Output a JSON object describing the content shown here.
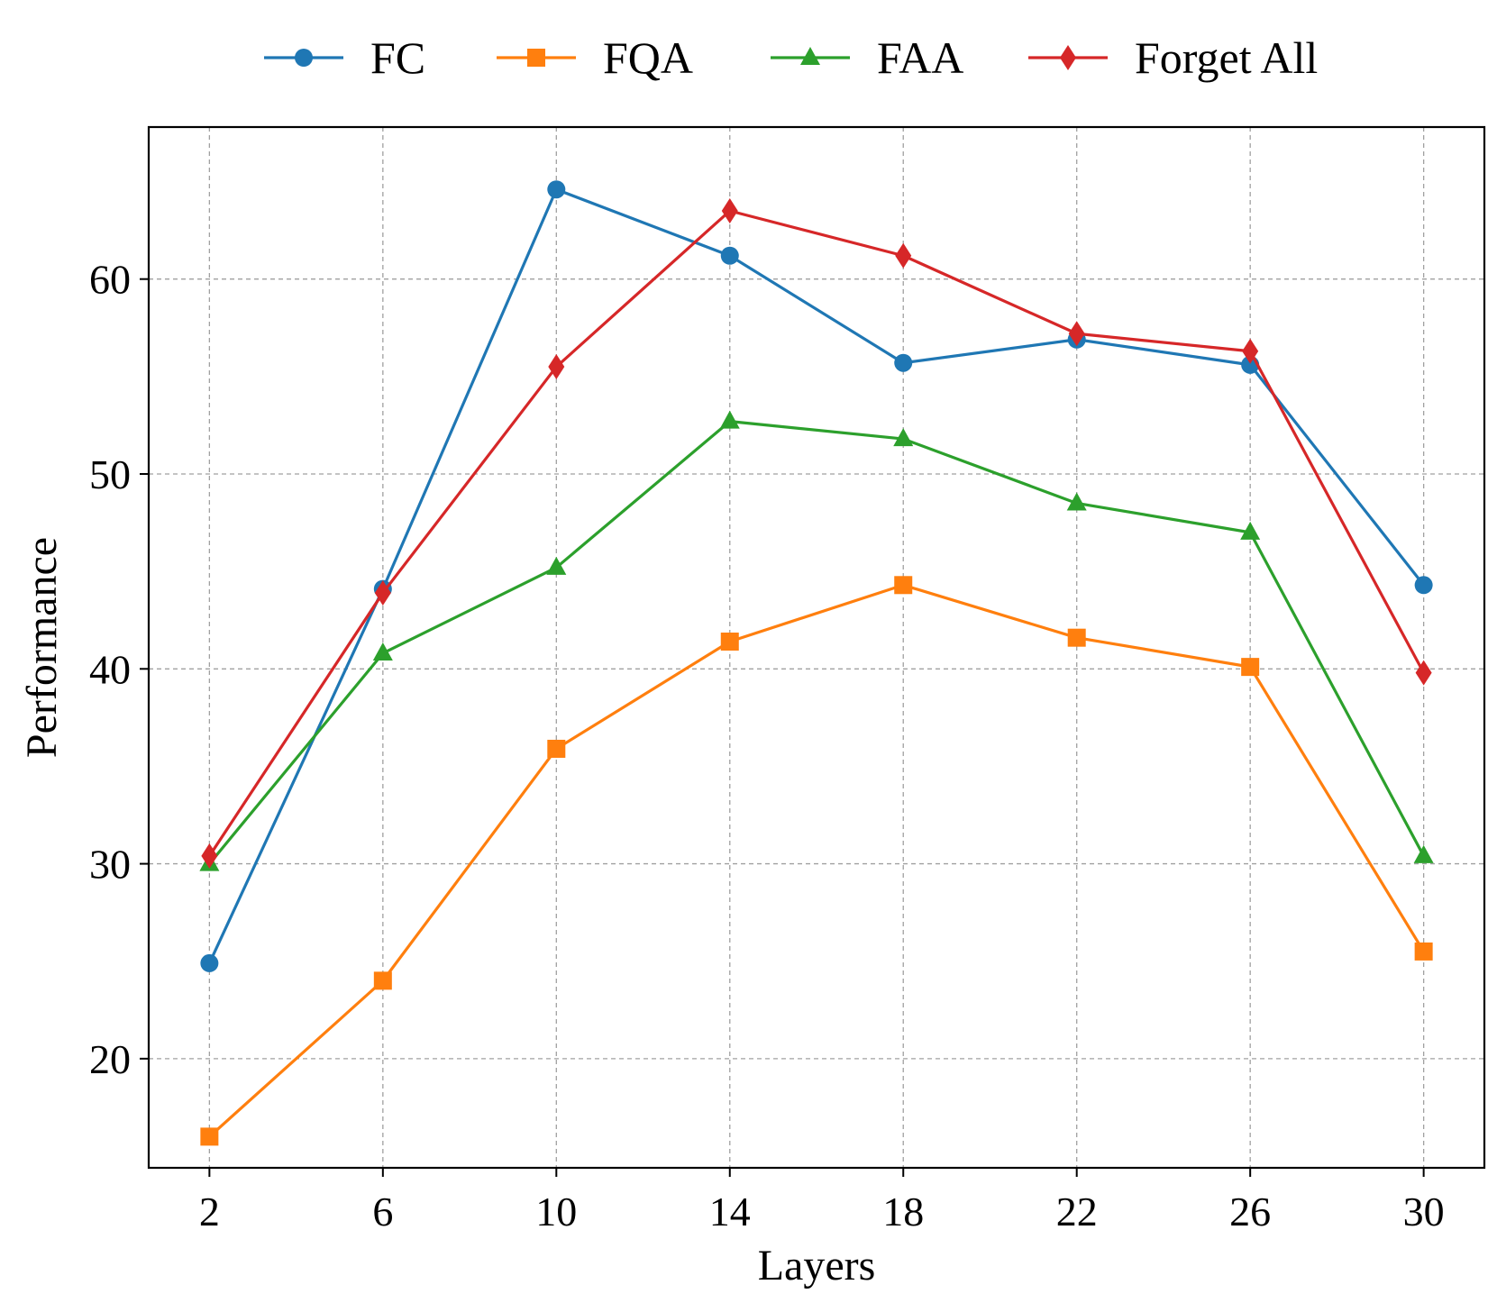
{
  "chart_data": {
    "type": "line",
    "xlabel": "Layers",
    "ylabel": "Performance",
    "x": [
      2,
      6,
      10,
      14,
      18,
      22,
      26,
      30
    ],
    "x_tick_labels": [
      "2",
      "6",
      "10",
      "14",
      "18",
      "22",
      "26",
      "30"
    ],
    "xlim": [
      0.6,
      31.4
    ],
    "y_ticks": [
      20,
      30,
      40,
      50,
      60
    ],
    "y_tick_labels": [
      "20",
      "30",
      "40",
      "50",
      "60"
    ],
    "ylim": [
      14.4,
      67.8
    ],
    "grid": true,
    "legend_position": "top-center",
    "series": [
      {
        "name": "FC",
        "color": "#1f77b4",
        "marker": "circle",
        "values": [
          24.9,
          44.1,
          64.6,
          61.2,
          55.7,
          56.9,
          55.6,
          44.3
        ]
      },
      {
        "name": "FQA",
        "color": "#ff7f0e",
        "marker": "square",
        "values": [
          16.0,
          24.0,
          35.9,
          41.4,
          44.3,
          41.6,
          40.1,
          25.5
        ]
      },
      {
        "name": "FAA",
        "color": "#2ca02c",
        "marker": "triangle",
        "values": [
          30.0,
          40.8,
          45.2,
          52.7,
          51.8,
          48.5,
          47.0,
          30.4
        ]
      },
      {
        "name": "Forget All",
        "color": "#d62728",
        "marker": "diamond",
        "values": [
          30.4,
          43.9,
          55.5,
          63.5,
          61.2,
          57.2,
          56.3,
          39.8
        ]
      }
    ]
  }
}
